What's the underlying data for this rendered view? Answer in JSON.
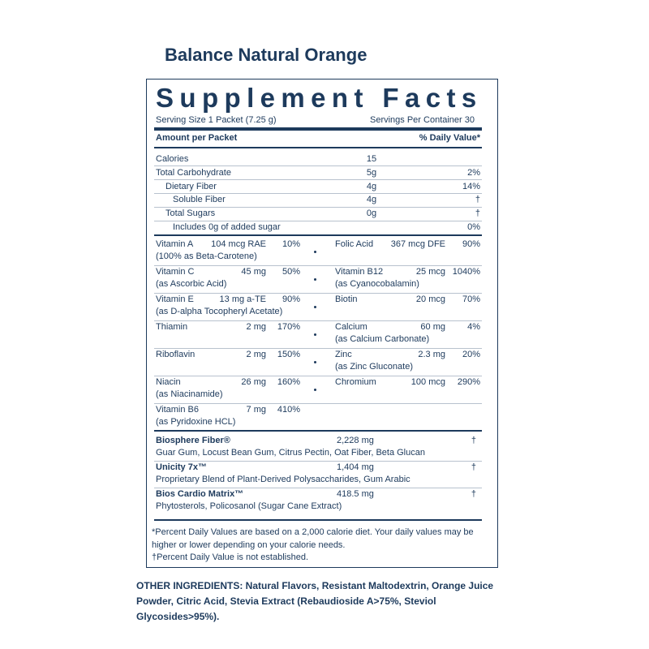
{
  "header": {
    "title": "Balance Natural Orange"
  },
  "facts": {
    "heading": "Supplement Facts",
    "serving_size": "Serving Size 1 Packet (7.25 g)",
    "servings_per_container": "Servings Per Container 30",
    "amount_header": "Amount per Packet",
    "dv_header": "% Daily Value*",
    "nutrients": [
      {
        "name": "Calories",
        "amount": "15"
      },
      {
        "name": "Total Carbohydrate",
        "amount": "5g",
        "dv": "2%",
        "sub": [
          {
            "name": "Dietary Fiber",
            "amount": "4g",
            "dv": "14%",
            "sub": [
              {
                "name": "Soluble Fiber",
                "amount": "4g",
                "dv": "†"
              }
            ]
          },
          {
            "name": "Total Sugars",
            "amount": "0g",
            "dv": "†",
            "sub": [
              {
                "name": "Includes 0g of added sugar",
                "dv": "0%"
              }
            ]
          }
        ]
      }
    ],
    "vitamins_left": [
      {
        "name": "Vitamin A",
        "amount": "104 mcg RAE",
        "dv": "10%",
        "note": "(100% as Beta-Carotene)"
      },
      {
        "name": "Vitamin C",
        "amount": "45 mg",
        "dv": "50%",
        "note": "(as Ascorbic Acid)"
      },
      {
        "name": "Vitamin E",
        "amount": "13  mg a-TE",
        "dv": "90%",
        "note": "(as D-alpha Tocopheryl Acetate)"
      },
      {
        "name": "Thiamin",
        "amount": "2 mg",
        "dv": "170%"
      },
      {
        "name": "Riboflavin",
        "amount": "2 mg",
        "dv": "150%"
      },
      {
        "name": "Niacin",
        "amount": "26 mg",
        "dv": "160%",
        "note": "(as Niacinamide)"
      },
      {
        "name": "Vitamin B6",
        "amount": "7 mg",
        "dv": "410%",
        "note": "(as Pyridoxine HCL)"
      }
    ],
    "vitamins_right": [
      {
        "name": "Folic Acid",
        "amount": "367 mcg DFE",
        "dv": "90%"
      },
      {
        "name": "Vitamin B12",
        "amount": "25 mcg",
        "dv": "1040%",
        "note": "(as Cyanocobalamin)"
      },
      {
        "name": "Biotin",
        "amount": "20 mcg",
        "dv": "70%"
      },
      {
        "name": "Calcium",
        "amount": "60 mg",
        "dv": "4%",
        "note": "(as Calcium Carbonate)"
      },
      {
        "name": "Zinc",
        "amount": "2.3 mg",
        "dv": "20%",
        "note": "(as Zinc Gluconate)"
      },
      {
        "name": "Chromium",
        "amount": "100 mcg",
        "dv": "290%"
      }
    ],
    "blends": [
      {
        "name": "Biosphere Fiber®",
        "amount": "2,228 mg",
        "dv": "†",
        "description": "Guar Gum, Locust Bean Gum, Citrus Pectin, Oat Fiber, Beta Glucan"
      },
      {
        "name": "Unicity 7x™",
        "amount": "1,404 mg",
        "dv": "†",
        "description": "Proprietary Blend of Plant-Derived Polysaccharides, Gum Arabic"
      },
      {
        "name": "Bios Cardio Matrix™",
        "amount": "418.5 mg",
        "dv": "†",
        "description": "Phytosterols, Policosanol (Sugar Cane Extract)"
      }
    ],
    "footnotes": [
      "*Percent Daily Values are based on a 2,000 calorie diet. Your daily values may be higher or lower depending on your calorie needs.",
      "†Percent Daily Value is not established."
    ]
  },
  "other_ingredients": "OTHER INGREDIENTS: Natural Flavors, Resistant Maltodextrin, Orange Juice Powder, Citric Acid, Stevia Extract (Rebaudioside A>75%, Steviol Glycosides>95%)."
}
